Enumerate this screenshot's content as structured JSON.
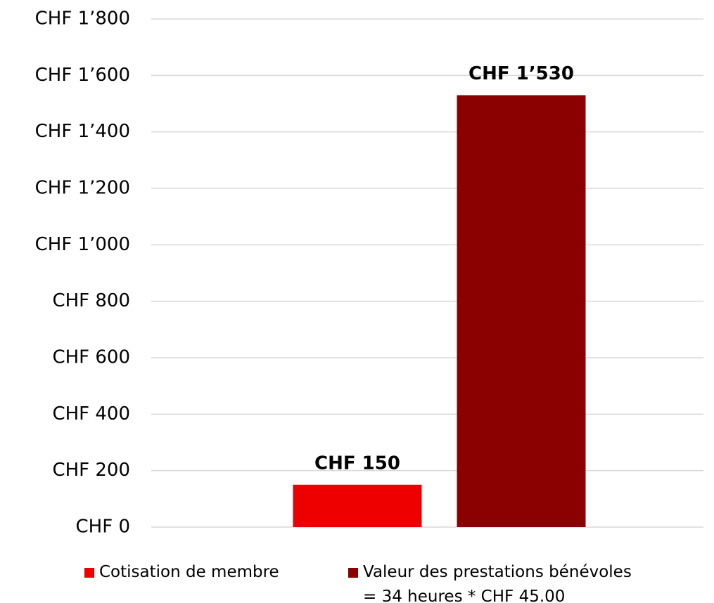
{
  "chart_data": {
    "type": "bar",
    "categories": [
      null
    ],
    "series": [
      {
        "name": "Cotisation de membre",
        "color": "#ee0000",
        "values": [
          150
        ],
        "value_labels": [
          "CHF 150"
        ]
      },
      {
        "name": "Valeur des prestations bénévoles\n= 34 heures * CHF 45.00",
        "color": "#8b0000",
        "values": [
          1530
        ],
        "value_labels": [
          "CHF 1’530"
        ]
      }
    ],
    "ylim": [
      0,
      1800
    ],
    "yticks": [
      {
        "value": 0,
        "label": "CHF 0"
      },
      {
        "value": 200,
        "label": "CHF 200"
      },
      {
        "value": 400,
        "label": "CHF 400"
      },
      {
        "value": 600,
        "label": "CHF 600"
      },
      {
        "value": 800,
        "label": "CHF 800"
      },
      {
        "value": 1000,
        "label": "CHF 1’000"
      },
      {
        "value": 1200,
        "label": "CHF 1’200"
      },
      {
        "value": 1400,
        "label": "CHF 1’400"
      },
      {
        "value": 1600,
        "label": "CHF 1’600"
      },
      {
        "value": 1800,
        "label": "CHF 1’800"
      }
    ],
    "grid": true,
    "legend": "bottom"
  }
}
